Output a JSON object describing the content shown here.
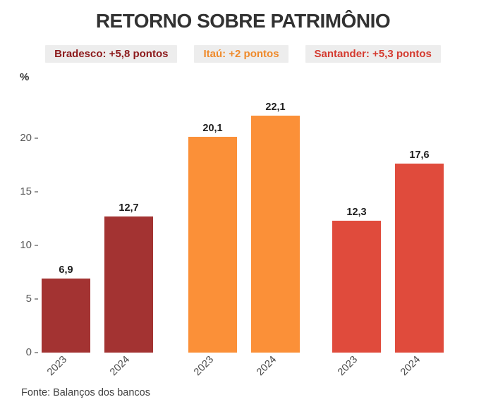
{
  "title": "RETORNO SOBRE PATRIMÔNIO",
  "y_axis_unit_label": "%",
  "footer": "Fonte: Balanços dos bancos",
  "chart_data": {
    "type": "bar",
    "title": "RETORNO SOBRE PATRIMÔNIO",
    "ylabel": "%",
    "categories": [
      "2023",
      "2024"
    ],
    "series": [
      {
        "name": "Bradesco",
        "legend_label": "Bradesco: +5,8 pontos",
        "values": [
          6.9,
          12.7
        ],
        "value_labels": [
          "6,9",
          "12,7"
        ],
        "bar_color": "#A33332",
        "legend_text_color": "#8C1A1C"
      },
      {
        "name": "Itaú",
        "legend_label": "Itaú: +2 pontos",
        "values": [
          20.1,
          22.1
        ],
        "value_labels": [
          "20,1",
          "22,1"
        ],
        "bar_color": "#FB9038",
        "legend_text_color": "#EF8A2B"
      },
      {
        "name": "Santander",
        "legend_label": "Santander: +5,3 pontos",
        "values": [
          12.3,
          17.6
        ],
        "value_labels": [
          "12,3",
          "17,6"
        ],
        "bar_color": "#E04B3C",
        "legend_text_color": "#D43A2F"
      }
    ],
    "yticks": [
      0,
      5,
      10,
      15,
      20
    ],
    "ylim": [
      0,
      24
    ],
    "grid": false,
    "legend_position": "top",
    "legend_chip_bg": "#EDEDED",
    "value_labels_shown": true,
    "source": "Fonte: Balanços dos bancos"
  }
}
